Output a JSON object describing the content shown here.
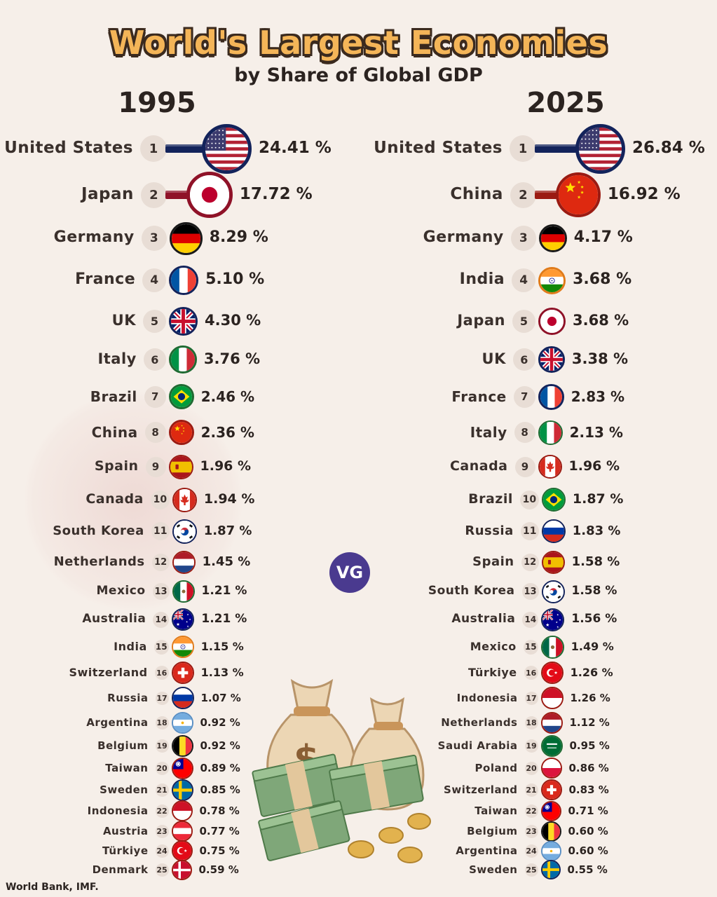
{
  "title": "World's Largest Economies",
  "subtitle": "by Share of Global GDP",
  "logo": "VG",
  "source": "World Bank, IMF.",
  "colors": {
    "title_fill": "#f4b558",
    "title_outline": "#3b2a1e",
    "background": "#f6efe9",
    "vg_badge": "#4a3a8f"
  },
  "chart_data": [
    {
      "type": "bar",
      "title": "1995",
      "unit": "%",
      "categories": [
        "United States",
        "Japan",
        "Germany",
        "France",
        "UK",
        "Italy",
        "Brazil",
        "China",
        "Spain",
        "Canada",
        "South Korea",
        "Netherlands",
        "Mexico",
        "Australia",
        "India",
        "Switzerland",
        "Russia",
        "Argentina",
        "Belgium",
        "Taiwan",
        "Sweden",
        "Indonesia",
        "Austria",
        "Türkiye",
        "Denmark"
      ],
      "ranks": [
        "1",
        "2",
        "3",
        "4",
        "5",
        "6",
        "7",
        "8",
        "9",
        "10",
        "11",
        "12",
        "13",
        "14",
        "15",
        "16",
        "17",
        "18",
        "19",
        "20",
        "21",
        "22",
        "23",
        "24",
        "25"
      ],
      "values": [
        24.41,
        17.72,
        8.29,
        5.1,
        4.3,
        3.76,
        2.46,
        2.36,
        1.96,
        1.94,
        1.87,
        1.45,
        1.21,
        1.21,
        1.15,
        1.13,
        1.07,
        0.92,
        0.92,
        0.89,
        0.85,
        0.78,
        0.77,
        0.75,
        0.59
      ],
      "labels": [
        "24.41 %",
        "17.72 %",
        "8.29 %",
        "5.10 %",
        "4.30 %",
        "3.76 %",
        "2.46 %",
        "2.36 %",
        "1.96 %",
        "1.94 %",
        "1.87 %",
        "1.45 %",
        "1.21 %",
        "1.21 %",
        "1.15 %",
        "1.13 %",
        "1.07 %",
        "0.92 %",
        "0.92 %",
        "0.89 %",
        "0.85 %",
        "0.78 %",
        "0.77 %",
        "0.75 %",
        "0.59 %"
      ],
      "flags": [
        "us",
        "jp",
        "de",
        "fr",
        "uk",
        "it",
        "br",
        "cn",
        "es",
        "ca",
        "kr",
        "nl",
        "mx",
        "au",
        "in",
        "ch",
        "ru",
        "ar",
        "be",
        "tw",
        "se",
        "id",
        "at",
        "tr",
        "dk"
      ]
    },
    {
      "type": "bar",
      "title": "2025",
      "unit": "%",
      "categories": [
        "United States",
        "China",
        "Germany",
        "India",
        "Japan",
        "UK",
        "France",
        "Italy",
        "Canada",
        "Brazil",
        "Russia",
        "Spain",
        "South Korea",
        "Australia",
        "Mexico",
        "Türkiye",
        "Indonesia",
        "Netherlands",
        "Saudi Arabia",
        "Poland",
        "Switzerland",
        "Taiwan",
        "Belgium",
        "Argentina",
        "Sweden"
      ],
      "ranks": [
        "1",
        "2",
        "3",
        "4",
        "5",
        "6",
        "7",
        "8",
        "9",
        "10",
        "11",
        "12",
        "13",
        "14",
        "15",
        "16",
        "17",
        "18",
        "19",
        "20",
        "21",
        "22",
        "23",
        "24",
        "25"
      ],
      "values": [
        26.84,
        16.92,
        4.17,
        3.68,
        3.68,
        3.38,
        2.83,
        2.13,
        1.96,
        1.87,
        1.83,
        1.58,
        1.58,
        1.56,
        1.49,
        1.26,
        1.26,
        1.12,
        0.95,
        0.86,
        0.83,
        0.71,
        0.6,
        0.6,
        0.55
      ],
      "labels": [
        "26.84 %",
        "16.92 %",
        "4.17 %",
        "3.68 %",
        "3.68 %",
        "3.38 %",
        "2.83 %",
        "2.13 %",
        "1.96 %",
        "1.87 %",
        "1.83 %",
        "1.58 %",
        "1.58 %",
        "1.56 %",
        "1.49 %",
        "1.26 %",
        "1.26 %",
        "1.12 %",
        "0.95 %",
        "0.86 %",
        "0.83 %",
        "0.71 %",
        "0.60 %",
        "0.60 %",
        "0.55 %"
      ],
      "flags": [
        "us",
        "cn",
        "de",
        "in",
        "jp",
        "uk",
        "fr",
        "it",
        "ca",
        "br",
        "ru",
        "es",
        "kr",
        "au",
        "mx",
        "tr",
        "id",
        "nl",
        "sa",
        "pl",
        "ch",
        "tw",
        "be",
        "ar",
        "se"
      ]
    }
  ]
}
